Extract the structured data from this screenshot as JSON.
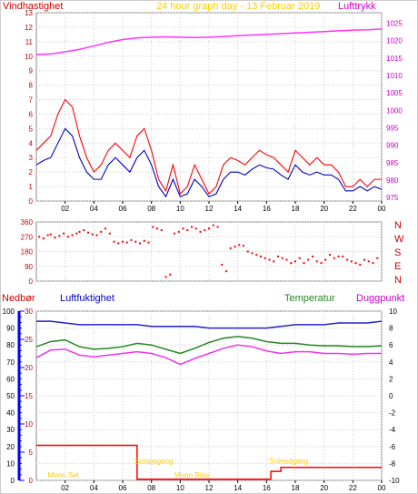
{
  "header": {
    "title": "24 hour graph day - 13 Februar 2019",
    "left_label": "Vindhastighet",
    "right_label": "Lufttrykk"
  },
  "colors": {
    "wind": "#ff0000",
    "wind_avg": "#0000cc",
    "pressure": "#ff33ff",
    "title": "#ffcc00",
    "humidity": "#2222cc",
    "temperature": "#228822",
    "dewpoint": "#ee33ee",
    "rain": "#ff0000",
    "rain_axis": "#0000ff",
    "axis_text": "#cc0000",
    "sun": "#ffcc00",
    "grid": "#cccccc"
  },
  "chart_data": [
    {
      "id": "wind-pressure",
      "type": "line",
      "xlim": [
        0,
        24
      ],
      "x_ticks": [
        "02",
        "04",
        "06",
        "08",
        "10",
        "12",
        "14",
        "16",
        "18",
        "20",
        "22",
        "00"
      ],
      "ylim": [
        0,
        13
      ],
      "y_ticks": [
        0,
        1,
        2,
        3,
        4,
        5,
        6,
        7,
        8,
        9,
        10,
        11,
        12,
        13
      ],
      "y2lim": [
        974,
        1028
      ],
      "y2_ticks": [
        975,
        980,
        985,
        990,
        995,
        1000,
        1005,
        1010,
        1015,
        1020,
        1025
      ],
      "series": [
        {
          "role": "gust",
          "name": "Vindhastighet",
          "color": "#ff0000",
          "x": [
            0,
            0.5,
            1,
            1.5,
            2,
            2.5,
            3,
            3.5,
            4,
            4.5,
            5,
            5.5,
            6,
            6.5,
            7,
            7.5,
            8,
            8.5,
            9,
            9.5,
            10,
            10.5,
            11,
            11.5,
            12,
            12.5,
            13,
            13.5,
            14,
            14.5,
            15,
            15.5,
            16,
            16.5,
            17,
            17.5,
            18,
            18.5,
            19,
            19.5,
            20,
            20.5,
            21,
            21.5,
            22,
            22.5,
            23,
            23.5,
            24
          ],
          "values": [
            3.5,
            4,
            4.5,
            6,
            7,
            6.5,
            4.5,
            3,
            2,
            2.5,
            3.5,
            4,
            3.5,
            3,
            4.5,
            5,
            3.5,
            1.5,
            0.7,
            2.5,
            0.5,
            1,
            2.5,
            1.5,
            0.5,
            1,
            2.5,
            3,
            2.8,
            2.5,
            3,
            3.5,
            3.2,
            3,
            2.5,
            2,
            3.5,
            3,
            2.5,
            3,
            2.5,
            2.5,
            2,
            1,
            1,
            1.5,
            1,
            1.5,
            1.5
          ]
        },
        {
          "role": "avg",
          "name": "Vindhastighet",
          "color": "#0000cc",
          "x": [
            0,
            0.5,
            1,
            1.5,
            2,
            2.5,
            3,
            3.5,
            4,
            4.5,
            5,
            5.5,
            6,
            6.5,
            7,
            7.5,
            8,
            8.5,
            9,
            9.5,
            10,
            10.5,
            11,
            11.5,
            12,
            12.5,
            13,
            13.5,
            14,
            14.5,
            15,
            15.5,
            16,
            16.5,
            17,
            17.5,
            18,
            18.5,
            19,
            19.5,
            20,
            20.5,
            21,
            21.5,
            22,
            22.5,
            23,
            23.5,
            24
          ],
          "values": [
            2.5,
            2.8,
            3,
            4,
            5,
            4.5,
            3,
            2,
            1.5,
            1.5,
            2.5,
            3,
            2.5,
            2,
            3,
            3.5,
            2.5,
            1,
            0.3,
            1.5,
            0.3,
            0.5,
            1.5,
            1,
            0.3,
            0.5,
            1.5,
            2,
            2,
            1.8,
            2.2,
            2.5,
            2.3,
            2.2,
            1.8,
            1.5,
            2.5,
            2,
            1.8,
            2,
            1.8,
            1.8,
            1.5,
            0.7,
            0.7,
            1,
            0.7,
            1,
            0.8
          ]
        },
        {
          "role": "pressure",
          "name": "Lufttrykk",
          "color": "#ff33ff",
          "axis": "right",
          "x": [
            0,
            1,
            2,
            3,
            4,
            5,
            6,
            7,
            8,
            9,
            10,
            11,
            12,
            13,
            14,
            15,
            16,
            17,
            18,
            19,
            20,
            21,
            22,
            23,
            24
          ],
          "values": [
            1016,
            1016.2,
            1016.8,
            1017.5,
            1018.5,
            1019.5,
            1020.3,
            1020.8,
            1021,
            1021.1,
            1021,
            1020.9,
            1021,
            1021.2,
            1021.4,
            1021.6,
            1021.8,
            1022,
            1022.2,
            1022.4,
            1022.6,
            1022.8,
            1023,
            1023.1,
            1023.3
          ]
        }
      ]
    },
    {
      "id": "wind-direction",
      "type": "scatter",
      "xlim": [
        0,
        24
      ],
      "ylim": [
        0,
        360
      ],
      "y_ticks": [
        0,
        90,
        180,
        270,
        360
      ],
      "y_tick_labels": [
        "0",
        "90",
        "180",
        "270",
        "360"
      ],
      "right_labels": [
        "N",
        "W",
        "S",
        "E",
        "N"
      ],
      "color": "#ff0000",
      "x": [
        0.2,
        0.5,
        0.8,
        1.0,
        1.3,
        1.6,
        1.9,
        2.2,
        2.5,
        2.8,
        3.0,
        3.3,
        3.6,
        3.9,
        4.2,
        4.5,
        4.8,
        5.1,
        5.4,
        5.7,
        6.0,
        6.3,
        6.6,
        6.9,
        7.2,
        7.5,
        7.8,
        8.1,
        8.4,
        8.7,
        9.0,
        9.3,
        9.6,
        9.9,
        10.2,
        10.5,
        10.8,
        11.1,
        11.4,
        11.7,
        12.0,
        12.3,
        12.6,
        12.9,
        13.2,
        13.5,
        13.8,
        14.1,
        14.4,
        14.7,
        15.0,
        15.3,
        15.6,
        15.9,
        16.2,
        16.5,
        16.8,
        17.1,
        17.4,
        17.7,
        18.0,
        18.3,
        18.6,
        18.9,
        19.2,
        19.5,
        19.8,
        20.1,
        20.4,
        20.7,
        21.0,
        21.3,
        21.6,
        21.9,
        22.2,
        22.5,
        22.8,
        23.1,
        23.4,
        23.7
      ],
      "values": [
        270,
        260,
        280,
        285,
        265,
        275,
        290,
        270,
        280,
        290,
        300,
        310,
        295,
        285,
        280,
        300,
        320,
        290,
        240,
        230,
        240,
        235,
        250,
        240,
        230,
        245,
        235,
        330,
        320,
        310,
        25,
        40,
        290,
        300,
        320,
        310,
        330,
        320,
        300,
        310,
        320,
        340,
        330,
        100,
        60,
        200,
        210,
        220,
        215,
        180,
        170,
        160,
        150,
        140,
        130,
        120,
        150,
        140,
        130,
        110,
        120,
        140,
        110,
        130,
        150,
        120,
        110,
        130,
        160,
        140,
        150,
        150,
        130,
        120,
        110,
        100,
        130,
        120,
        110,
        140
      ]
    },
    {
      "id": "humidity-temp",
      "type": "line",
      "xlim": [
        0,
        24
      ],
      "rain_ylim": [
        0,
        30
      ],
      "rain_ticks": [
        0,
        5,
        10,
        15,
        20,
        25,
        30
      ],
      "humidity_ylim": [
        0,
        100
      ],
      "humidity_ticks": [
        0,
        10,
        20,
        30,
        40,
        50,
        60,
        70,
        80,
        90,
        100
      ],
      "temp_ylim": [
        -10,
        10
      ],
      "temp_ticks": [
        -10,
        -8,
        -6,
        -4,
        -2,
        0,
        2,
        4,
        6,
        8,
        10
      ],
      "series": [
        {
          "role": "humidity",
          "name": "Luftfuktighet",
          "color": "#2222cc",
          "x": [
            0,
            1,
            2,
            3,
            4,
            5,
            6,
            7,
            8,
            9,
            10,
            11,
            12,
            13,
            14,
            15,
            16,
            17,
            18,
            19,
            20,
            21,
            22,
            23,
            24
          ],
          "values": [
            94,
            94,
            93,
            92,
            92,
            92,
            92,
            92,
            91,
            91,
            91,
            91,
            90,
            90,
            90,
            90,
            90,
            91,
            92,
            92,
            92,
            93,
            93,
            93,
            94
          ]
        },
        {
          "role": "temperature",
          "name": "Temperatur",
          "color": "#228822",
          "x": [
            0,
            1,
            2,
            3,
            4,
            5,
            6,
            7,
            8,
            9,
            10,
            11,
            12,
            13,
            14,
            15,
            16,
            17,
            18,
            19,
            20,
            21,
            22,
            23,
            24
          ],
          "values": [
            5.8,
            6.4,
            6.6,
            5.8,
            5.5,
            5.6,
            5.8,
            6.2,
            6.0,
            5.5,
            5.0,
            5.6,
            6.3,
            6.8,
            7.0,
            6.8,
            6.4,
            6.2,
            6.2,
            6.0,
            5.9,
            5.9,
            5.8,
            5.8,
            5.9
          ]
        },
        {
          "role": "dewpoint",
          "name": "Duggpunkt",
          "color": "#ee33ee",
          "x": [
            0,
            1,
            2,
            3,
            4,
            5,
            6,
            7,
            8,
            9,
            10,
            11,
            12,
            13,
            14,
            15,
            16,
            17,
            18,
            19,
            20,
            21,
            22,
            23,
            24
          ],
          "values": [
            4.5,
            5.4,
            5.5,
            4.8,
            4.6,
            4.8,
            5.0,
            5.2,
            5.0,
            4.5,
            3.7,
            4.4,
            5.0,
            5.6,
            6.0,
            5.8,
            5.3,
            5.0,
            5.2,
            5.2,
            5.0,
            5.0,
            4.9,
            5.0,
            5.0
          ]
        },
        {
          "role": "rain",
          "name": "Nedbør",
          "color": "#ff0000",
          "x": [
            0,
            7.0,
            7.0,
            16.3,
            16.3,
            17.0,
            17.0,
            24
          ],
          "values": [
            6.2,
            6.2,
            0.2,
            0.2,
            1.6,
            1.6,
            2.3,
            2.3
          ]
        }
      ],
      "annotations": [
        {
          "text": "Moon Set",
          "x": 0.8,
          "value": 0.5
        },
        {
          "text": "Soloppgang",
          "x": 6.8,
          "value": 3.0
        },
        {
          "text": "Moon Rise",
          "x": 9.6,
          "value": 0.5
        },
        {
          "text": "Solnedgang",
          "x": 16.2,
          "value": 3.0
        }
      ],
      "x_ticks": [
        "02",
        "04",
        "06",
        "08",
        "10",
        "12",
        "14",
        "16",
        "18",
        "20",
        "22",
        "00"
      ]
    }
  ],
  "panel3": {
    "rain_label": "Nedbør",
    "humidity_label": "Luftfuktighet",
    "temp_label": "Temperatur",
    "dewpoint_label": "Duggpunkt"
  }
}
